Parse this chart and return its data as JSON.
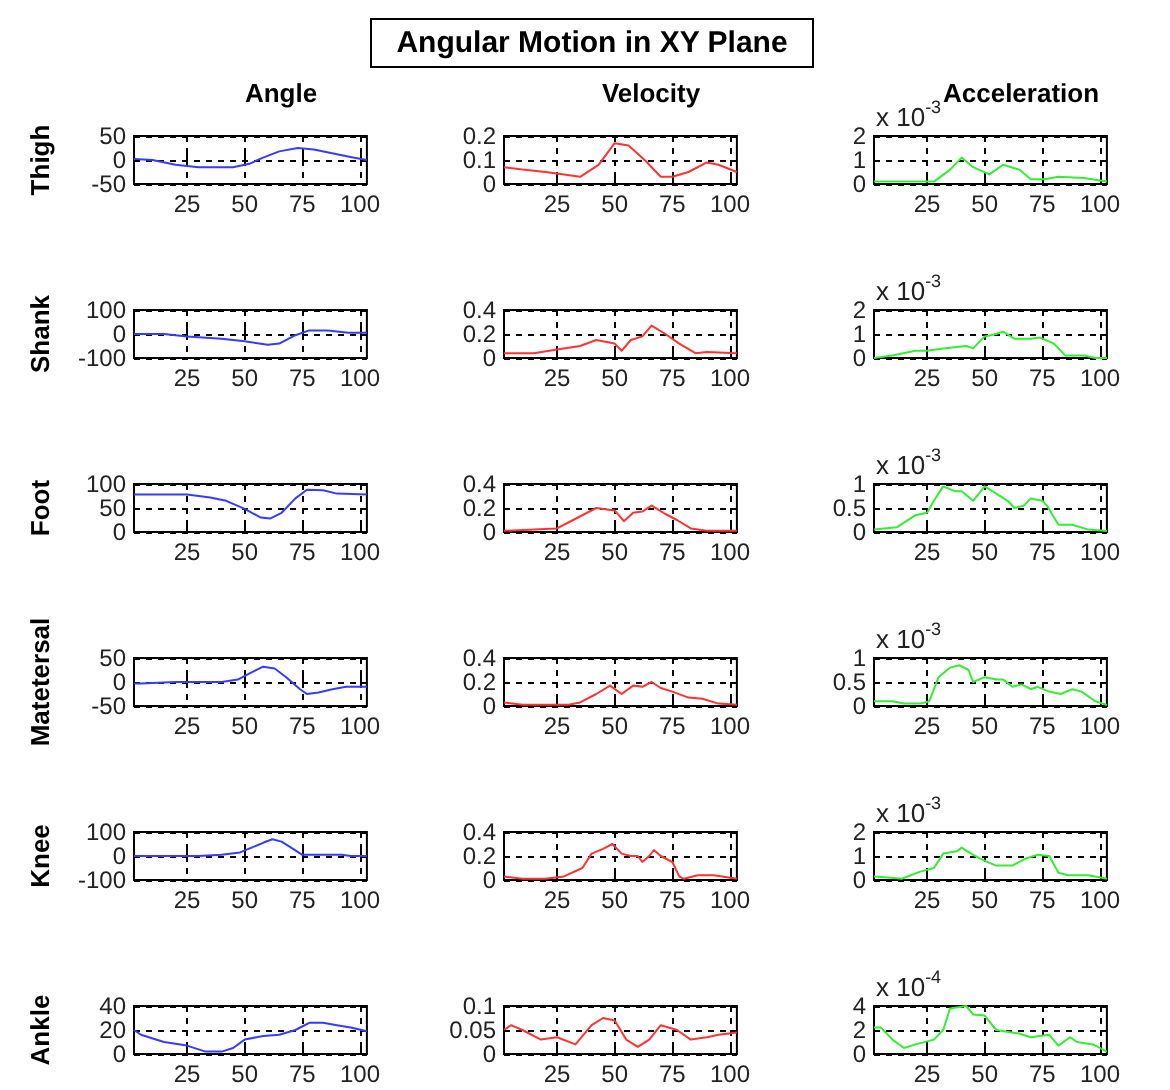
{
  "chart_data": [
    {
      "type": "other",
      "title": "Angular Motion in XY Plane"
    },
    {
      "type": "line",
      "title": "Angle",
      "ylabel": "Thigh",
      "x": [
        2,
        10,
        20,
        30,
        45,
        52,
        58,
        65,
        73,
        80,
        90,
        97,
        103
      ],
      "series": [
        {
          "color": "#3a3aff",
          "values": [
            2,
            0,
            -10,
            -15,
            -15,
            -8,
            5,
            18,
            25,
            22,
            12,
            5,
            0
          ]
        }
      ],
      "xlim": [
        2,
        103
      ],
      "xticks": [
        25,
        50,
        75,
        100
      ],
      "ylim": [
        -50,
        50
      ],
      "yticks": [
        -50,
        0,
        50
      ],
      "grid": true
    },
    {
      "type": "line",
      "title": "Velocity",
      "x": [
        2,
        10,
        20,
        28,
        35,
        43,
        50,
        56,
        63,
        70,
        75,
        82,
        90,
        95,
        103
      ],
      "series": [
        {
          "color": "#ff3333",
          "values": [
            0.07,
            0.06,
            0.05,
            0.04,
            0.03,
            0.08,
            0.17,
            0.16,
            0.1,
            0.03,
            0.03,
            0.05,
            0.09,
            0.08,
            0.05
          ]
        }
      ],
      "xlim": [
        2,
        103
      ],
      "xticks": [
        25,
        50,
        75,
        100
      ],
      "ylim": [
        0,
        0.2
      ],
      "yticks": [
        0,
        0.1,
        0.2
      ],
      "grid": true
    },
    {
      "type": "line",
      "title": "Acceleration",
      "annotations": [
        "x 10$^{-3}$"
      ],
      "x": [
        2,
        28,
        35,
        40,
        45,
        52,
        58,
        65,
        70,
        76,
        82,
        93,
        103
      ],
      "series": [
        {
          "color": "#33ee33",
          "values": [
            0.1,
            0.1,
            0.6,
            1.1,
            0.7,
            0.4,
            0.8,
            0.6,
            0.2,
            0.2,
            0.3,
            0.25,
            0.1
          ]
        }
      ],
      "xlim": [
        2,
        103
      ],
      "xticks": [
        25,
        50,
        75,
        100
      ],
      "ylim": [
        0,
        2
      ],
      "yticks": [
        0,
        1,
        2
      ],
      "grid": true
    },
    {
      "type": "line",
      "ylabel": "Shank",
      "x": [
        2,
        15,
        25,
        40,
        50,
        60,
        65,
        72,
        78,
        86,
        95,
        103
      ],
      "series": [
        {
          "color": "#3a3aff",
          "values": [
            0,
            0,
            -10,
            -20,
            -30,
            -45,
            -40,
            -5,
            15,
            15,
            5,
            5
          ]
        }
      ],
      "xlim": [
        2,
        103
      ],
      "xticks": [
        25,
        50,
        75,
        100
      ],
      "ylim": [
        -100,
        100
      ],
      "yticks": [
        -100,
        0,
        100
      ],
      "grid": true
    },
    {
      "type": "line",
      "x": [
        2,
        15,
        25,
        35,
        42,
        50,
        53,
        57,
        62,
        66,
        72,
        78,
        85,
        90,
        103
      ],
      "series": [
        {
          "color": "#ff3333",
          "values": [
            0.04,
            0.04,
            0.07,
            0.1,
            0.15,
            0.12,
            0.06,
            0.15,
            0.18,
            0.27,
            0.2,
            0.12,
            0.04,
            0.05,
            0.04
          ]
        }
      ],
      "xlim": [
        2,
        103
      ],
      "xticks": [
        25,
        50,
        75,
        100
      ],
      "ylim": [
        0,
        0.4
      ],
      "yticks": [
        0,
        0.2,
        0.4
      ],
      "grid": true
    },
    {
      "type": "line",
      "annotations": [
        "x 10$^{-3}$"
      ],
      "x": [
        2,
        10,
        20,
        25,
        32,
        42,
        45,
        50,
        55,
        58,
        63,
        70,
        74,
        80,
        85,
        93,
        98,
        103
      ],
      "series": [
        {
          "color": "#33ee33",
          "values": [
            0,
            0.1,
            0.3,
            0.3,
            0.4,
            0.5,
            0.4,
            0.9,
            1,
            1.1,
            0.8,
            0.8,
            0.85,
            0.6,
            0.1,
            0.1,
            0,
            0
          ]
        }
      ],
      "xlim": [
        2,
        103
      ],
      "xticks": [
        25,
        50,
        75,
        100
      ],
      "ylim": [
        0,
        2
      ],
      "yticks": [
        0,
        1,
        2
      ],
      "grid": true
    },
    {
      "type": "line",
      "ylabel": "Foot",
      "x": [
        2,
        25,
        35,
        42,
        50,
        57,
        61,
        66,
        72,
        77,
        84,
        90,
        103
      ],
      "series": [
        {
          "color": "#3a3aff",
          "values": [
            78,
            78,
            72,
            65,
            48,
            30,
            28,
            40,
            70,
            88,
            87,
            80,
            78
          ]
        }
      ],
      "xlim": [
        2,
        103
      ],
      "xticks": [
        25,
        50,
        75,
        100
      ],
      "ylim": [
        0,
        100
      ],
      "yticks": [
        0,
        50,
        100
      ],
      "grid": true
    },
    {
      "type": "line",
      "x": [
        2,
        15,
        25,
        32,
        42,
        50,
        54,
        58,
        62,
        66,
        72,
        77,
        83,
        90,
        103
      ],
      "series": [
        {
          "color": "#ff3333",
          "values": [
            0.01,
            0.02,
            0.03,
            0.1,
            0.2,
            0.18,
            0.09,
            0.16,
            0.17,
            0.22,
            0.15,
            0.1,
            0.03,
            0.01,
            0.01
          ]
        }
      ],
      "xlim": [
        2,
        103
      ],
      "xticks": [
        25,
        50,
        75,
        100
      ],
      "ylim": [
        0,
        0.4
      ],
      "yticks": [
        0,
        0.2,
        0.4
      ],
      "grid": true
    },
    {
      "type": "line",
      "annotations": [
        "x 10$^{-3}$"
      ],
      "x": [
        2,
        12,
        20,
        25,
        28,
        32,
        37,
        40,
        45,
        50,
        55,
        60,
        63,
        67,
        70,
        75,
        77,
        82,
        88,
        95,
        103
      ],
      "series": [
        {
          "color": "#33ee33",
          "values": [
            0.05,
            0.1,
            0.35,
            0.4,
            0.65,
            0.95,
            0.85,
            0.85,
            0.65,
            0.95,
            0.8,
            0.65,
            0.5,
            0.55,
            0.7,
            0.65,
            0.55,
            0.15,
            0.15,
            0.05,
            0.02
          ]
        }
      ],
      "xlim": [
        2,
        103
      ],
      "xticks": [
        25,
        50,
        75,
        100
      ],
      "ylim": [
        0,
        1
      ],
      "yticks": [
        0,
        0.5,
        1
      ],
      "grid": true
    },
    {
      "type": "line",
      "ylabel": "Matetersal",
      "x": [
        2,
        5,
        20,
        40,
        47,
        53,
        58,
        63,
        68,
        74,
        77,
        82,
        88,
        94,
        103
      ],
      "series": [
        {
          "color": "#3a3aff",
          "values": [
            -3,
            -3,
            0,
            0,
            5,
            20,
            32,
            28,
            10,
            -15,
            -25,
            -22,
            -15,
            -10,
            -10
          ]
        }
      ],
      "xlim": [
        2,
        103
      ],
      "xticks": [
        25,
        50,
        75,
        100
      ],
      "ylim": [
        -50,
        50
      ],
      "yticks": [
        -50,
        0,
        50
      ],
      "grid": true
    },
    {
      "type": "line",
      "x": [
        2,
        10,
        30,
        35,
        42,
        48,
        53,
        58,
        62,
        66,
        70,
        75,
        82,
        88,
        95,
        103
      ],
      "series": [
        {
          "color": "#ff3333",
          "values": [
            0.03,
            0.01,
            0.01,
            0.03,
            0.1,
            0.17,
            0.1,
            0.17,
            0.16,
            0.2,
            0.15,
            0.12,
            0.07,
            0.06,
            0.02,
            0.01
          ]
        }
      ],
      "xlim": [
        2,
        103
      ],
      "xticks": [
        25,
        50,
        75,
        100
      ],
      "ylim": [
        0,
        0.4
      ],
      "yticks": [
        0,
        0.2,
        0.4
      ],
      "grid": true
    },
    {
      "type": "line",
      "annotations": [
        "x 10$^{-3}$"
      ],
      "x": [
        2,
        10,
        15,
        22,
        26,
        30,
        35,
        39,
        43,
        45,
        50,
        55,
        58,
        62,
        66,
        70,
        73,
        78,
        83,
        88,
        92,
        98,
        103
      ],
      "series": [
        {
          "color": "#33ee33",
          "values": [
            0.1,
            0.1,
            0.05,
            0.05,
            0.1,
            0.6,
            0.8,
            0.85,
            0.75,
            0.5,
            0.6,
            0.55,
            0.55,
            0.4,
            0.45,
            0.35,
            0.4,
            0.3,
            0.25,
            0.35,
            0.3,
            0.1,
            0.02
          ]
        }
      ],
      "xlim": [
        2,
        103
      ],
      "xticks": [
        25,
        50,
        75,
        100
      ],
      "ylim": [
        0,
        1
      ],
      "yticks": [
        0,
        0.5,
        1
      ],
      "grid": true
    },
    {
      "type": "line",
      "ylabel": "Knee",
      "x": [
        2,
        30,
        40,
        48,
        53,
        58,
        62,
        66,
        71,
        75,
        85,
        92,
        96,
        103
      ],
      "series": [
        {
          "color": "#3a3aff",
          "values": [
            0,
            0,
            5,
            15,
            35,
            55,
            70,
            60,
            30,
            5,
            5,
            5,
            0,
            0
          ]
        }
      ],
      "xlim": [
        2,
        103
      ],
      "xticks": [
        25,
        50,
        75,
        100
      ],
      "ylim": [
        -100,
        100
      ],
      "yticks": [
        -100,
        0,
        100
      ],
      "grid": true
    },
    {
      "type": "line",
      "x": [
        2,
        10,
        20,
        28,
        36,
        40,
        45,
        49,
        53,
        57,
        60,
        62,
        65,
        67,
        70,
        75,
        78,
        80,
        86,
        93,
        103
      ],
      "series": [
        {
          "color": "#ff3333",
          "values": [
            0.03,
            0.01,
            0.01,
            0.03,
            0.1,
            0.22,
            0.26,
            0.3,
            0.22,
            0.2,
            0.2,
            0.15,
            0.2,
            0.25,
            0.2,
            0.15,
            0.03,
            0.01,
            0.04,
            0.04,
            0.01
          ]
        }
      ],
      "xlim": [
        2,
        103
      ],
      "xticks": [
        25,
        50,
        75,
        100
      ],
      "ylim": [
        0,
        0.4
      ],
      "yticks": [
        0,
        0.2,
        0.4
      ],
      "grid": true
    },
    {
      "type": "line",
      "annotations": [
        "x 10$^{-3}$"
      ],
      "x": [
        2,
        8,
        14,
        22,
        28,
        32,
        38,
        40,
        45,
        50,
        55,
        62,
        68,
        73,
        78,
        82,
        86,
        95,
        103
      ],
      "series": [
        {
          "color": "#33ee33",
          "values": [
            0.15,
            0.1,
            0.05,
            0.35,
            0.5,
            1.1,
            1.2,
            1.35,
            1.05,
            0.8,
            0.6,
            0.6,
            0.9,
            1.05,
            1,
            0.3,
            0.2,
            0.2,
            0.05
          ]
        }
      ],
      "xlim": [
        2,
        103
      ],
      "xticks": [
        25,
        50,
        75,
        100
      ],
      "ylim": [
        0,
        2
      ],
      "yticks": [
        0,
        1,
        2
      ],
      "grid": true
    },
    {
      "type": "line",
      "ylabel": "Ankle",
      "x": [
        2,
        5,
        15,
        25,
        33,
        40,
        45,
        50,
        58,
        65,
        72,
        78,
        84,
        90,
        96,
        103
      ],
      "series": [
        {
          "color": "#3a3aff",
          "values": [
            20,
            16,
            10,
            7,
            2,
            2,
            5,
            12,
            15,
            16,
            20,
            26,
            26,
            24,
            22,
            19
          ]
        }
      ],
      "xlim": [
        2,
        103
      ],
      "xticks": [
        25,
        50,
        75,
        100
      ],
      "ylim": [
        0,
        40
      ],
      "yticks": [
        0,
        20,
        40
      ],
      "grid": true
    },
    {
      "type": "line",
      "x": [
        2,
        5,
        10,
        18,
        25,
        33,
        40,
        45,
        50,
        55,
        60,
        65,
        70,
        77,
        83,
        90,
        95,
        103
      ],
      "series": [
        {
          "color": "#ff3333",
          "values": [
            0.05,
            0.06,
            0.05,
            0.03,
            0.035,
            0.02,
            0.06,
            0.075,
            0.07,
            0.03,
            0.015,
            0.03,
            0.06,
            0.05,
            0.03,
            0.035,
            0.04,
            0.045
          ]
        }
      ],
      "xlim": [
        2,
        103
      ],
      "xticks": [
        25,
        50,
        75,
        100
      ],
      "ylim": [
        0,
        0.1
      ],
      "yticks": [
        0,
        0.05,
        0.1
      ],
      "grid": true
    },
    {
      "type": "line",
      "annotations": [
        "x 10$^{-4}$"
      ],
      "x": [
        2,
        5,
        10,
        15,
        20,
        28,
        32,
        35,
        42,
        45,
        50,
        55,
        65,
        70,
        78,
        82,
        87,
        90,
        97,
        103
      ],
      "series": [
        {
          "color": "#33ee33",
          "values": [
            2.2,
            2.2,
            1.2,
            0.5,
            0.8,
            1.2,
            2,
            3.8,
            4,
            3.3,
            3.2,
            2,
            1.7,
            1.4,
            1.6,
            0.7,
            1.4,
            1,
            0.8,
            0.2
          ]
        }
      ],
      "xlim": [
        2,
        103
      ],
      "xticks": [
        25,
        50,
        75,
        100
      ],
      "ylim": [
        0,
        4
      ],
      "yticks": [
        0,
        2,
        4
      ],
      "grid": true
    }
  ]
}
